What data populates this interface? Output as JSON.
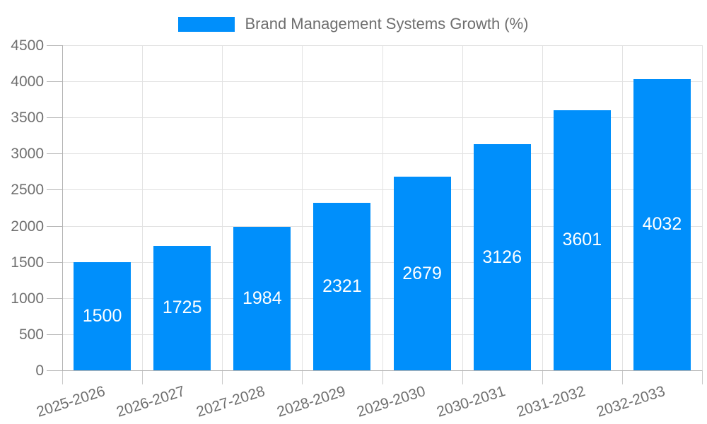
{
  "chart_data": {
    "type": "bar",
    "title": "Brand Management Systems Growth (%)",
    "categories": [
      "2025-2026",
      "2026-2027",
      "2027-2028",
      "2028-2029",
      "2029-2030",
      "2030-2031",
      "2031-2032",
      "2032-2033"
    ],
    "values": [
      1500,
      1725,
      1984,
      2321,
      2679,
      3126,
      3601,
      4032
    ],
    "xlabel": "",
    "ylabel": "",
    "ylim": [
      0,
      4500
    ],
    "ytick_step": 500,
    "yticks": [
      0,
      500,
      1000,
      1500,
      2000,
      2500,
      3000,
      3500,
      4000,
      4500
    ],
    "grid": true,
    "legend_position": "top",
    "colors": {
      "bar": "#008FFB",
      "value_label": "#ffffff",
      "axis_label": "#6f6f6f",
      "gridline": "#e2e2e2",
      "axis_line": "#b3b3b3",
      "background": "#ffffff"
    }
  },
  "legend": {
    "label": "Brand Management Systems Growth (%)"
  }
}
